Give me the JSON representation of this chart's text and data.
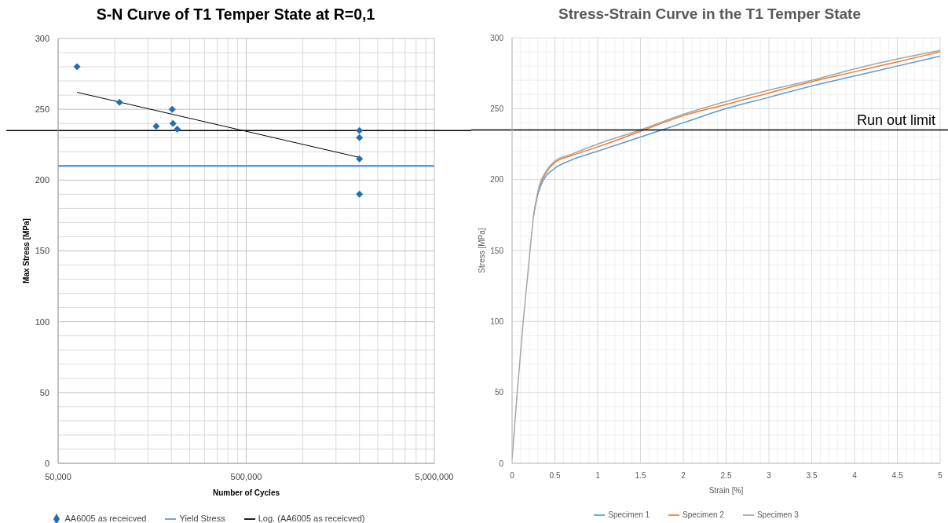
{
  "chart_data": [
    {
      "type": "scatter",
      "title": "S-N Curve of T1 Temper State at R=0,1",
      "xlabel": "Number of Cycles",
      "ylabel": "Max Stress [MPa]",
      "x": [
        63000,
        106000,
        166000,
        202000,
        204000,
        215000,
        2000000,
        2000000,
        2000000,
        2000000
      ],
      "series": [
        {
          "name": "AA6005 as receicved",
          "color": "#1f6fb5",
          "marker": "diamond",
          "values": [
            280,
            255,
            238,
            250,
            240,
            236,
            235,
            230,
            215,
            190
          ]
        },
        {
          "name": "Yield Stress",
          "type": "line",
          "color": "#5b9bd5",
          "x": [
            50000,
            5000000
          ],
          "values": [
            210,
            210
          ]
        },
        {
          "name": "Log. (AA6005 as receicved)",
          "type": "line",
          "color": "#000000",
          "x": [
            63000,
            2000000
          ],
          "values": [
            262,
            216
          ]
        }
      ],
      "log": "x",
      "xlim": [
        50000,
        5000000
      ],
      "xticks": [
        {
          "value": 50000,
          "label": "50,000"
        },
        {
          "value": 100000,
          "label": null
        },
        {
          "value": 150000,
          "label": null
        },
        {
          "value": 200000,
          "label": null
        },
        {
          "value": 250000,
          "label": null
        },
        {
          "value": 300000,
          "label": null
        },
        {
          "value": 350000,
          "label": null
        },
        {
          "value": 400000,
          "label": null
        },
        {
          "value": 450000,
          "label": null
        },
        {
          "value": 500000,
          "label": "500,000"
        },
        {
          "value": 1000000,
          "label": null
        },
        {
          "value": 1500000,
          "label": null
        },
        {
          "value": 2000000,
          "label": null
        },
        {
          "value": 2500000,
          "label": null
        },
        {
          "value": 3000000,
          "label": null
        },
        {
          "value": 3500000,
          "label": null
        },
        {
          "value": 4000000,
          "label": null
        },
        {
          "value": 4500000,
          "label": null
        },
        {
          "value": 5000000,
          "label": "5,000,000"
        }
      ],
      "ylim": [
        0,
        300
      ],
      "yticks": [
        0,
        {
          "value": 10,
          "label": null
        },
        {
          "value": 20,
          "label": null
        },
        {
          "value": 30,
          "label": null
        },
        {
          "value": 40,
          "label": null
        },
        50,
        {
          "value": 60,
          "label": null
        },
        {
          "value": 70,
          "label": null
        },
        {
          "value": 80,
          "label": null
        },
        {
          "value": 90,
          "label": null
        },
        100,
        {
          "value": 110,
          "label": null
        },
        {
          "value": 120,
          "label": null
        },
        {
          "value": 130,
          "label": null
        },
        {
          "value": 140,
          "label": null
        },
        150,
        {
          "value": 160,
          "label": null
        },
        {
          "value": 170,
          "label": null
        },
        {
          "value": 180,
          "label": null
        },
        {
          "value": 190,
          "label": null
        },
        200,
        {
          "value": 210,
          "label": null
        },
        {
          "value": 220,
          "label": null
        },
        {
          "value": 230,
          "label": null
        },
        {
          "value": 240,
          "label": null
        },
        250,
        {
          "value": 260,
          "label": null
        },
        {
          "value": 270,
          "label": null
        },
        {
          "value": 280,
          "label": null
        },
        {
          "value": 290,
          "label": null
        },
        300
      ],
      "grid": true,
      "legend": "bottom",
      "ref_lines": [
        {
          "axis": "y",
          "value": 235,
          "color": "#000000"
        }
      ]
    },
    {
      "type": "line",
      "title": "Stress-Strain Curve in the T1 Temper State",
      "xlabel": "Strain [%]",
      "ylabel": "Stress [MPa]",
      "x": [
        0,
        0.06,
        0.13,
        0.21,
        0.25,
        0.29,
        0.33,
        0.38,
        0.5,
        0.7,
        1,
        1.5,
        2,
        2.5,
        3,
        3.5,
        4,
        4.5,
        5
      ],
      "series": [
        {
          "name": "Specimen 1",
          "color": "#5b9bd5",
          "values": [
            null,
            null,
            null,
            null,
            174,
            187,
            195,
            201,
            208,
            214,
            220,
            230,
            240,
            250,
            258,
            266,
            273,
            280,
            287
          ]
        },
        {
          "name": "Specimen 2",
          "color": "#ed7d31",
          "values": [
            null,
            null,
            null,
            null,
            null,
            188,
            197,
            203,
            212,
            217,
            223,
            234,
            245,
            253,
            261,
            269,
            276,
            283,
            290
          ]
        },
        {
          "name": "Specimen 3",
          "color": "#a5a5a5",
          "values": [
            3,
            50,
            100,
            150,
            174,
            188,
            198,
            204,
            213,
            218,
            225,
            235,
            246,
            255,
            263,
            270,
            278,
            285,
            291
          ]
        }
      ],
      "xlim": [
        0,
        5
      ],
      "xticks": [
        0,
        {
          "value": 0.1,
          "label": null
        },
        {
          "value": 0.2,
          "label": null
        },
        {
          "value": 0.3,
          "label": null
        },
        {
          "value": 0.4,
          "label": null
        },
        0.5,
        {
          "value": 0.6,
          "label": null
        },
        {
          "value": 0.7,
          "label": null
        },
        {
          "value": 0.8,
          "label": null
        },
        {
          "value": 0.9,
          "label": null
        },
        1,
        {
          "value": 1.1,
          "label": null
        },
        {
          "value": 1.2,
          "label": null
        },
        {
          "value": 1.3,
          "label": null
        },
        {
          "value": 1.4,
          "label": null
        },
        1.5,
        {
          "value": 1.6,
          "label": null
        },
        {
          "value": 1.7,
          "label": null
        },
        {
          "value": 1.8,
          "label": null
        },
        {
          "value": 1.9,
          "label": null
        },
        2,
        {
          "value": 2.1,
          "label": null
        },
        {
          "value": 2.2,
          "label": null
        },
        {
          "value": 2.3,
          "label": null
        },
        {
          "value": 2.4,
          "label": null
        },
        2.5,
        {
          "value": 2.6,
          "label": null
        },
        {
          "value": 2.7,
          "label": null
        },
        {
          "value": 2.8,
          "label": null
        },
        {
          "value": 2.9,
          "label": null
        },
        3,
        {
          "value": 3.1,
          "label": null
        },
        {
          "value": 3.2,
          "label": null
        },
        {
          "value": 3.3,
          "label": null
        },
        {
          "value": 3.4,
          "label": null
        },
        3.5,
        {
          "value": 3.6,
          "label": null
        },
        {
          "value": 3.7,
          "label": null
        },
        {
          "value": 3.8,
          "label": null
        },
        {
          "value": 3.9,
          "label": null
        },
        4,
        {
          "value": 4.1,
          "label": null
        },
        {
          "value": 4.2,
          "label": null
        },
        {
          "value": 4.3,
          "label": null
        },
        {
          "value": 4.4,
          "label": null
        },
        4.5,
        {
          "value": 4.6,
          "label": null
        },
        {
          "value": 4.7,
          "label": null
        },
        {
          "value": 4.8,
          "label": null
        },
        {
          "value": 4.9,
          "label": null
        },
        5
      ],
      "ylim": [
        0,
        300
      ],
      "yticks": [
        0,
        {
          "value": 10,
          "label": null
        },
        {
          "value": 20,
          "label": null
        },
        {
          "value": 30,
          "label": null
        },
        {
          "value": 40,
          "label": null
        },
        50,
        {
          "value": 60,
          "label": null
        },
        {
          "value": 70,
          "label": null
        },
        {
          "value": 80,
          "label": null
        },
        {
          "value": 90,
          "label": null
        },
        100,
        {
          "value": 110,
          "label": null
        },
        {
          "value": 120,
          "label": null
        },
        {
          "value": 130,
          "label": null
        },
        {
          "value": 140,
          "label": null
        },
        150,
        {
          "value": 160,
          "label": null
        },
        {
          "value": 170,
          "label": null
        },
        {
          "value": 180,
          "label": null
        },
        {
          "value": 190,
          "label": null
        },
        200,
        {
          "value": 210,
          "label": null
        },
        {
          "value": 220,
          "label": null
        },
        {
          "value": 230,
          "label": null
        },
        {
          "value": 240,
          "label": null
        },
        250,
        {
          "value": 260,
          "label": null
        },
        {
          "value": 270,
          "label": null
        },
        {
          "value": 280,
          "label": null
        },
        {
          "value": 290,
          "label": null
        },
        300
      ],
      "grid": true,
      "legend": "bottom",
      "ref_lines": [
        {
          "axis": "y",
          "value": 235,
          "color": "#000000",
          "label": "Run out limit"
        }
      ]
    }
  ]
}
